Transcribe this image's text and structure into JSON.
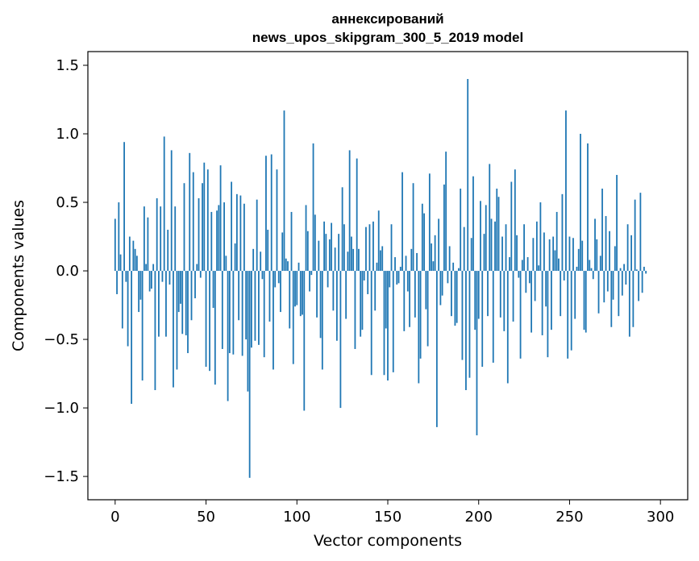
{
  "chart_data": {
    "type": "bar",
    "title_line1": "аннексирований",
    "title_line2": "news_upos_skipgram_300_5_2019 model",
    "xlabel": "Vector components",
    "ylabel": "Components values",
    "xlim": [
      -15,
      315
    ],
    "ylim": [
      -1.67,
      1.6
    ],
    "xticks": [
      0,
      50,
      100,
      150,
      200,
      250,
      300
    ],
    "yticks": [
      1.5,
      1.0,
      0.5,
      0.0,
      -0.5,
      -1.0,
      -1.5
    ],
    "ytick_labels": [
      "1.5",
      "1.0",
      "0.5",
      "0.0",
      "−0.5",
      "−1.0",
      "−1.5"
    ],
    "bar_color": "#1f77b4",
    "values": [
      0.38,
      -0.17,
      0.5,
      0.12,
      -0.42,
      0.94,
      -0.08,
      -0.55,
      0.25,
      -0.97,
      0.22,
      0.16,
      0.11,
      -0.3,
      -0.21,
      -0.8,
      0.47,
      0.05,
      0.39,
      -0.15,
      -0.13,
      0.05,
      -0.87,
      0.53,
      -0.48,
      0.47,
      -0.08,
      0.98,
      -0.48,
      0.3,
      -0.1,
      0.88,
      -0.85,
      0.47,
      -0.72,
      -0.3,
      -0.24,
      -0.46,
      0.64,
      -0.47,
      -0.6,
      0.86,
      -0.36,
      0.72,
      -0.2,
      0.05,
      0.53,
      -0.05,
      0.64,
      0.79,
      -0.7,
      0.74,
      -0.73,
      0.43,
      -0.27,
      -0.83,
      0.44,
      0.48,
      0.77,
      -0.57,
      0.5,
      0.11,
      -0.95,
      -0.6,
      0.65,
      -0.61,
      0.2,
      0.56,
      -0.36,
      0.55,
      -0.62,
      0.49,
      -0.5,
      -0.88,
      -1.51,
      -0.56,
      0.16,
      -0.51,
      0.52,
      -0.54,
      0.14,
      -0.06,
      -0.63,
      0.84,
      0.3,
      -0.37,
      0.85,
      -0.72,
      -0.12,
      0.74,
      -0.09,
      -0.3,
      0.28,
      1.17,
      0.09,
      0.07,
      -0.42,
      0.43,
      -0.68,
      -0.26,
      -0.25,
      0.06,
      -0.33,
      -0.32,
      -1.02,
      0.48,
      0.29,
      -0.15,
      -0.03,
      0.93,
      0.41,
      -0.34,
      0.22,
      -0.49,
      -0.72,
      0.36,
      0.27,
      -0.12,
      0.23,
      0.35,
      -0.29,
      0.17,
      -0.51,
      0.27,
      -1.0,
      0.61,
      0.34,
      -0.35,
      0.14,
      0.88,
      0.25,
      0.16,
      -0.57,
      0.82,
      0.16,
      -0.48,
      -0.43,
      -0.07,
      0.32,
      -0.17,
      0.34,
      -0.76,
      0.36,
      -0.29,
      0.06,
      0.44,
      0.15,
      0.18,
      -0.76,
      -0.42,
      -0.8,
      -0.12,
      0.34,
      -0.74,
      0.1,
      -0.1,
      -0.09,
      0.03,
      0.72,
      -0.44,
      0.11,
      -0.15,
      -0.41,
      0.16,
      0.64,
      -0.34,
      0.13,
      -0.82,
      -0.64,
      0.49,
      0.42,
      -0.28,
      -0.55,
      0.71,
      0.2,
      0.07,
      0.26,
      -1.14,
      0.38,
      -0.25,
      -0.18,
      0.63,
      0.87,
      -0.09,
      0.18,
      -0.33,
      0.06,
      -0.4,
      -0.38,
      0.02,
      0.6,
      -0.65,
      0.32,
      -0.87,
      1.4,
      -0.78,
      0.24,
      0.69,
      -0.43,
      -1.2,
      -0.35,
      0.51,
      -0.7,
      0.27,
      0.48,
      -0.33,
      0.78,
      0.38,
      -0.67,
      0.36,
      0.6,
      0.54,
      -0.34,
      0.25,
      -0.44,
      0.34,
      -0.82,
      0.1,
      0.65,
      -0.37,
      0.74,
      0.26,
      -0.05,
      -0.64,
      0.08,
      0.34,
      -0.16,
      0.1,
      -0.09,
      -0.45,
      0.24,
      -0.22,
      0.36,
      0.04,
      0.5,
      -0.47,
      0.28,
      -0.26,
      -0.63,
      0.23,
      -0.43,
      0.25,
      0.15,
      0.43,
      0.09,
      -0.33,
      0.56,
      -0.07,
      1.17,
      -0.64,
      0.25,
      -0.58,
      0.24,
      -0.35,
      0.03,
      0.16,
      1.0,
      0.22,
      -0.43,
      -0.45,
      0.93,
      0.08,
      0.02,
      -0.06,
      0.38,
      0.23,
      -0.31,
      0.11,
      0.6,
      -0.23,
      0.4,
      -0.15,
      0.29,
      -0.41,
      -0.21,
      0.18,
      0.7,
      -0.33,
      0.02,
      -0.18,
      0.05,
      -0.1,
      0.34,
      -0.48,
      0.26,
      -0.41,
      0.52,
      0.01,
      -0.22,
      0.57,
      -0.16,
      0.03,
      -0.02
    ]
  }
}
